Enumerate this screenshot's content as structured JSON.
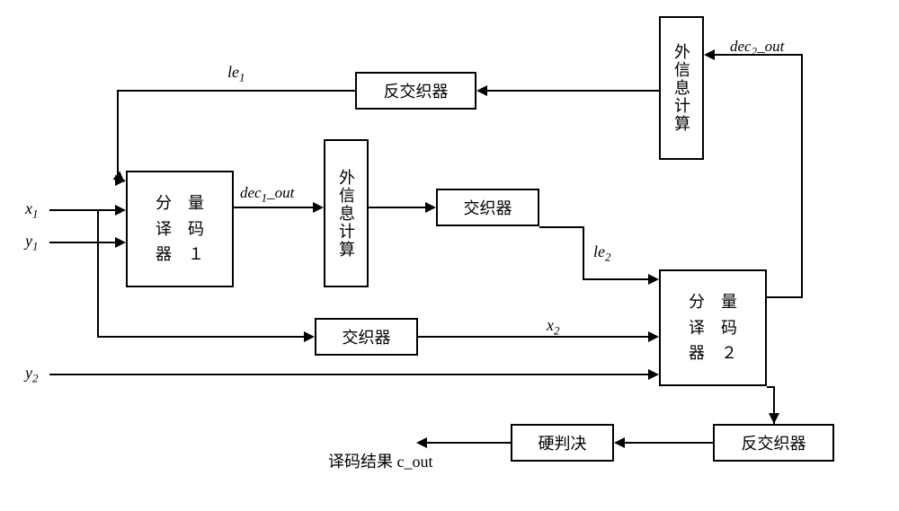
{
  "inputs": {
    "x1": "x",
    "x1_sub": "1",
    "y1": "y",
    "y1_sub": "1",
    "y2": "y",
    "y2_sub": "2"
  },
  "signals": {
    "le1": "le",
    "le1_sub": "1",
    "le2": "le",
    "le2_sub": "2",
    "x2": "x",
    "x2_sub": "2",
    "dec1_out_a": "dec",
    "dec1_out_sub": "1",
    "dec1_out_b": "_out",
    "dec2_out_a": "dec",
    "dec2_out_sub": "2",
    "dec2_out_b": "_out",
    "c_out": "译码结果 c_out"
  },
  "blocks": {
    "decoder1": "分　量\n译　码\n器　１",
    "decoder2": "分　量\n译　码\n器　２",
    "extcalc1": "外信息计算",
    "extcalc2": "外信息计算",
    "interleaver1": "交织器",
    "interleaver2": "交织器",
    "deinterleaver1": "反交织器",
    "deinterleaver2": "反交织器",
    "hard_decision": "硬判决"
  },
  "style": {
    "bg": "#ffffff",
    "stroke": "#000000",
    "fontsize_block": 18,
    "fontsize_label": 18
  }
}
